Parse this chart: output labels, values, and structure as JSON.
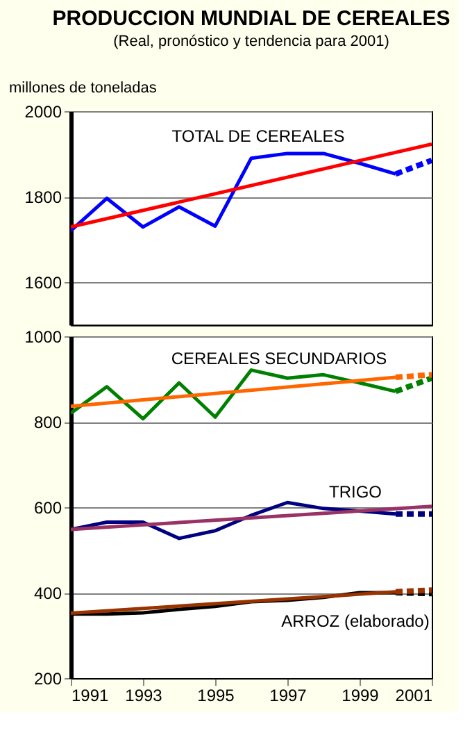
{
  "chart_data": [
    {
      "type": "line",
      "title": "PRODUCCION MUNDIAL DE CEREALES",
      "subtitle": "(Real, pronóstico y tendencia para 2001)",
      "ylabel": "millones de toneladas",
      "xlim": [
        1991,
        2001
      ],
      "ylim": [
        1500,
        2000
      ],
      "yticks": [
        1600,
        1800,
        2000
      ],
      "grid": "y",
      "tick_labels": "y",
      "line_style": "solid",
      "annotations": [
        "TOTAL DE CEREALES"
      ],
      "series": [
        {
          "color": "#0000ff",
          "x": [
            1991,
            1992,
            1993,
            1994,
            1995,
            1996,
            1997,
            1998,
            1999,
            2000
          ],
          "values": [
            1720,
            1796,
            1729,
            1776,
            1731,
            1890,
            1901,
            1901,
            1878,
            1853
          ]
        },
        {
          "color": "#0000ff",
          "line_style": "dashed",
          "x": [
            2000,
            2001
          ],
          "values": [
            1853,
            1885
          ]
        },
        {
          "color": "#ff0000",
          "x": [
            1991,
            2001
          ],
          "values": [
            1729,
            1923
          ]
        }
      ]
    },
    {
      "type": "line",
      "xlim": [
        1991,
        2001
      ],
      "xticks": [
        1991,
        1993,
        1995,
        1997,
        1999,
        2001
      ],
      "ylim": [
        200,
        1000
      ],
      "yticks": [
        200,
        400,
        600,
        800,
        1000
      ],
      "grid": "y",
      "line_style": "solid",
      "annotations": [
        "CEREALES SECUNDARIOS",
        "TRIGO",
        "ARROZ (elaborado)"
      ],
      "series": [
        {
          "color": "#008000",
          "x": [
            1991,
            1992,
            1993,
            1994,
            1995,
            1996,
            1997,
            1998,
            1999,
            2000
          ],
          "values": [
            820,
            882,
            807,
            891,
            811,
            921,
            902,
            910,
            891,
            871
          ]
        },
        {
          "color": "#008000",
          "line_style": "dashed",
          "x": [
            2000,
            2001
          ],
          "values": [
            871,
            902
          ]
        },
        {
          "color": "#ff6600",
          "x": [
            1991,
            2000
          ],
          "values": [
            836,
            904
          ]
        },
        {
          "color": "#ff6600",
          "line_style": "dashed",
          "x": [
            2000,
            2001
          ],
          "values": [
            904,
            910
          ]
        },
        {
          "color": "#000080",
          "x": [
            1991,
            1992,
            1993,
            1994,
            1995,
            1996,
            1997,
            1998,
            1999,
            2000
          ],
          "values": [
            548,
            565,
            565,
            527,
            545,
            581,
            611,
            597,
            591,
            584
          ]
        },
        {
          "color": "#000080",
          "line_style": "dashed",
          "x": [
            2000,
            2001
          ],
          "values": [
            584,
            584
          ]
        },
        {
          "color": "#993366",
          "x": [
            1991,
            2001
          ],
          "values": [
            548,
            602
          ]
        },
        {
          "color": "#000000",
          "x": [
            1991,
            1992,
            1993,
            1994,
            1995,
            1996,
            1997,
            1998,
            1999,
            2000
          ],
          "values": [
            350,
            350,
            353,
            361,
            368,
            379,
            382,
            389,
            400,
            400
          ]
        },
        {
          "color": "#000000",
          "line_style": "dashed",
          "x": [
            2000,
            2001
          ],
          "values": [
            400,
            398
          ]
        },
        {
          "color": "#993300",
          "x": [
            1991,
            2000
          ],
          "values": [
            352,
            402
          ]
        },
        {
          "color": "#993300",
          "line_style": "dashed",
          "x": [
            2000,
            2001
          ],
          "values": [
            402,
            406
          ]
        }
      ]
    }
  ]
}
